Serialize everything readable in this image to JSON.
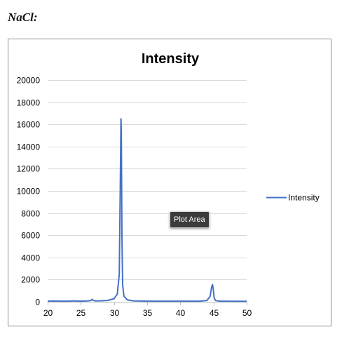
{
  "document": {
    "label": "NaCl:"
  },
  "tooltip": {
    "text": "Plot Area"
  },
  "chart_data": {
    "type": "line",
    "title": "Intensity",
    "xlabel": "",
    "ylabel": "",
    "xlim": [
      20,
      50
    ],
    "ylim": [
      0,
      20000
    ],
    "x_ticks": [
      20,
      25,
      30,
      35,
      40,
      45,
      50
    ],
    "y_ticks": [
      0,
      2000,
      4000,
      6000,
      8000,
      10000,
      12000,
      14000,
      16000,
      18000,
      20000
    ],
    "grid": true,
    "legend_position": "right",
    "color": "#4472c4",
    "series": [
      {
        "name": "Intensity",
        "x": [
          20,
          21,
          22,
          23,
          24,
          25,
          26,
          26.5,
          26.7,
          26.9,
          27.2,
          28,
          29,
          30,
          30.5,
          30.8,
          30.95,
          31.05,
          31.1,
          31.2,
          31.3,
          31.5,
          32,
          33,
          34,
          35,
          36,
          37,
          38,
          39,
          40,
          41,
          42,
          43,
          44,
          44.5,
          44.7,
          44.85,
          44.95,
          45.1,
          45.3,
          45.6,
          46,
          47,
          48,
          49,
          50
        ],
        "y": [
          60,
          70,
          60,
          60,
          80,
          60,
          80,
          110,
          220,
          120,
          80,
          90,
          120,
          280,
          700,
          2500,
          11000,
          16500,
          15500,
          6000,
          1500,
          500,
          180,
          80,
          70,
          60,
          60,
          60,
          60,
          60,
          60,
          60,
          60,
          60,
          120,
          500,
          1300,
          1550,
          1200,
          350,
          120,
          80,
          60,
          60,
          50,
          50,
          50
        ]
      }
    ]
  }
}
